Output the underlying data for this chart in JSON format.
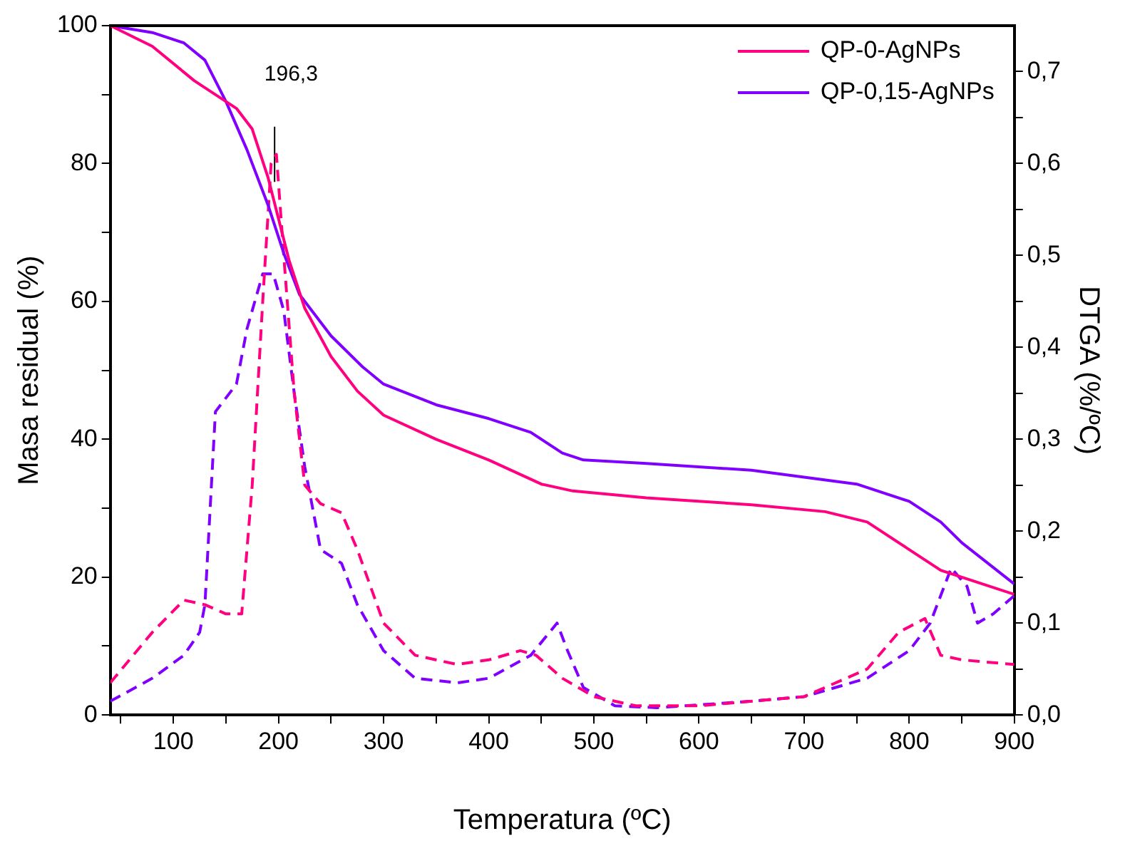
{
  "chart_data": {
    "type": "line",
    "xlabel": "Temperatura (ºC)",
    "ylabel": "Masa residual (%)",
    "y2label": "DTGA (%/ºC)",
    "xlim": [
      40,
      900
    ],
    "xticks": [
      {
        "value": 50,
        "label": null
      },
      100,
      {
        "value": 150,
        "label": null
      },
      200,
      {
        "value": 250,
        "label": null
      },
      300,
      {
        "value": 350,
        "label": null
      },
      400,
      {
        "value": 450,
        "label": null
      },
      500,
      {
        "value": 550,
        "label": null
      },
      600,
      {
        "value": 650,
        "label": null
      },
      700,
      {
        "value": 750,
        "label": null
      },
      800,
      {
        "value": 850,
        "label": null
      },
      900
    ],
    "ylim": [
      0,
      100
    ],
    "yticks": [
      0,
      {
        "value": 10,
        "label": null
      },
      20,
      {
        "value": 30,
        "label": null
      },
      40,
      {
        "value": 50,
        "label": null
      },
      60,
      {
        "value": 70,
        "label": null
      },
      80,
      {
        "value": 90,
        "label": null
      },
      100
    ],
    "y2lim": [
      0,
      0.75
    ],
    "y2ticks": [
      {
        "value": 0,
        "label": "0,0"
      },
      {
        "value": 0.05,
        "label": null
      },
      {
        "value": 0.1,
        "label": "0,1"
      },
      {
        "value": 0.15,
        "label": null
      },
      {
        "value": 0.2,
        "label": "0,2"
      },
      {
        "value": 0.25,
        "label": null
      },
      {
        "value": 0.3,
        "label": "0,3"
      },
      {
        "value": 0.35,
        "label": null
      },
      {
        "value": 0.4,
        "label": "0,4"
      },
      {
        "value": 0.45,
        "label": null
      },
      {
        "value": 0.5,
        "label": "0,5"
      },
      {
        "value": 0.55,
        "label": null
      },
      {
        "value": 0.6,
        "label": "0,6"
      },
      {
        "value": 0.65,
        "label": null
      },
      {
        "value": 0.7,
        "label": "0,7"
      }
    ],
    "grid": false,
    "legend": "top right",
    "marker": "none",
    "annotations": [
      "196,3"
    ],
    "series": [
      {
        "name": "QP-0-AgNPs",
        "color": "#ff0080",
        "line_style": "solid",
        "x": [
          40,
          80,
          120,
          160,
          175,
          190,
          200,
          210,
          225,
          250,
          275,
          300,
          350,
          400,
          450,
          480,
          550,
          650,
          720,
          760,
          800,
          830,
          860,
          900
        ],
        "values": [
          100,
          97,
          92,
          88,
          85,
          78,
          72,
          66,
          59,
          52,
          47,
          43.5,
          40,
          37,
          33.5,
          32.5,
          31.5,
          30.5,
          29.5,
          28,
          24,
          21,
          19.5,
          17.5
        ]
      },
      {
        "name": "QP-0,15-AgNPs",
        "color": "#8000ff",
        "line_style": "solid",
        "x": [
          40,
          80,
          110,
          130,
          150,
          170,
          190,
          205,
          220,
          250,
          280,
          300,
          350,
          400,
          440,
          470,
          490,
          550,
          650,
          750,
          800,
          830,
          850,
          900
        ],
        "values": [
          100,
          99,
          97.5,
          95,
          89,
          82,
          74,
          67,
          61,
          55,
          50.5,
          48,
          45,
          43,
          41,
          38,
          37,
          36.5,
          35.5,
          33.5,
          31,
          28,
          25,
          19
        ]
      },
      {
        "color": "#ff0080",
        "line_style": "dashed",
        "axis": "y2",
        "x": [
          40,
          80,
          110,
          130,
          150,
          165,
          175,
          185,
          193,
          198,
          205,
          215,
          225,
          240,
          260,
          275,
          300,
          330,
          370,
          400,
          430,
          445,
          470,
          500,
          540,
          600,
          700,
          760,
          790,
          815,
          830,
          850,
          900
        ],
        "values": [
          0.035,
          0.09,
          0.125,
          0.12,
          0.11,
          0.11,
          0.25,
          0.45,
          0.6,
          0.61,
          0.5,
          0.35,
          0.25,
          0.23,
          0.22,
          0.18,
          0.1,
          0.065,
          0.055,
          0.06,
          0.07,
          0.065,
          0.04,
          0.02,
          0.01,
          0.01,
          0.02,
          0.05,
          0.09,
          0.105,
          0.065,
          0.06,
          0.055
        ]
      },
      {
        "color": "#000000",
        "line_style": "solid",
        "axis": "y2",
        "x": [
          196.3,
          196.3
        ],
        "values": [
          0.58,
          0.64
        ]
      },
      {
        "color": "#8000ff",
        "line_style": "dashed",
        "axis": "y2",
        "x": [
          40,
          80,
          110,
          125,
          130,
          140,
          160,
          170,
          185,
          195,
          205,
          215,
          225,
          240,
          260,
          275,
          300,
          330,
          370,
          400,
          440,
          465,
          475,
          490,
          520,
          560,
          650,
          700,
          760,
          800,
          820,
          840,
          855,
          865,
          880,
          900
        ],
        "values": [
          0.015,
          0.04,
          0.065,
          0.09,
          0.12,
          0.33,
          0.36,
          0.42,
          0.48,
          0.48,
          0.44,
          0.35,
          0.27,
          0.18,
          0.165,
          0.12,
          0.07,
          0.04,
          0.035,
          0.04,
          0.065,
          0.1,
          0.07,
          0.03,
          0.01,
          0.008,
          0.015,
          0.02,
          0.04,
          0.07,
          0.1,
          0.16,
          0.14,
          0.1,
          0.11,
          0.13
        ]
      }
    ]
  }
}
